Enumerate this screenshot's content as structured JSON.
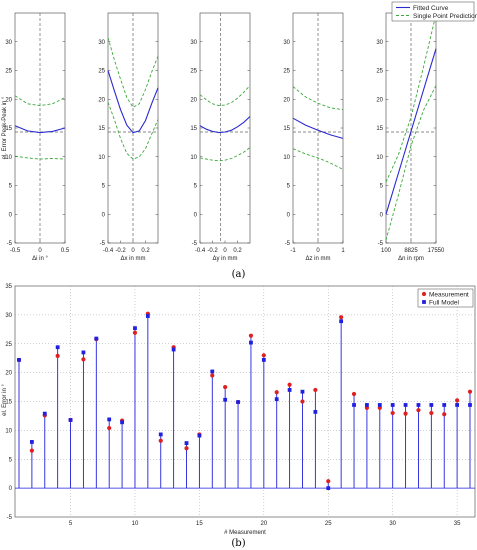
{
  "captions": {
    "a": "(a)",
    "b": "(b)"
  },
  "chart_data": [
    {
      "type": "line",
      "panel": "a",
      "ylabel": "el. Error Peak-Peak in °",
      "ylim": [
        -5,
        35
      ],
      "yticks": [
        -5,
        0,
        5,
        10,
        15,
        20,
        25,
        30
      ],
      "reference_line_y": 14.3,
      "legend": {
        "placement": "top-right",
        "entries": [
          "Fitted Curve",
          "Single Point Prediction"
        ]
      },
      "series_colors": {
        "fitted": "#2a2ad0",
        "prediction": "#3aa83a",
        "reference": "#666666"
      },
      "subplots": [
        {
          "xlabel": "Δi in °",
          "xlim": [
            -0.5,
            0.5
          ],
          "xticks": [
            -0.5,
            0,
            0.5
          ],
          "xticklabels": [
            "-0.5",
            "0",
            "0.5"
          ],
          "vline": 0,
          "x": [
            -0.5,
            -0.25,
            0,
            0.25,
            0.5
          ],
          "fitted": [
            15.4,
            14.5,
            14.2,
            14.4,
            15.0
          ],
          "upper": [
            20.6,
            19.2,
            18.9,
            19.2,
            20.3
          ],
          "lower": [
            10.1,
            9.8,
            9.6,
            9.7,
            9.6
          ]
        },
        {
          "xlabel": "Δx in mm",
          "xlim": [
            -0.4,
            0.4
          ],
          "xticks": [
            -0.4,
            -0.2,
            0,
            0.2
          ],
          "xticklabels": [
            "-0.4",
            "-0.2",
            "0",
            "0.2"
          ],
          "vline": 0,
          "x": [
            -0.4,
            -0.3,
            -0.2,
            -0.1,
            0,
            0.1,
            0.2,
            0.3,
            0.4
          ],
          "fitted": [
            25.0,
            21.5,
            18.2,
            15.5,
            14.2,
            14.5,
            16.3,
            19.3,
            22.0
          ],
          "upper": [
            30.7,
            26.9,
            23.5,
            20.3,
            18.6,
            19.2,
            21.7,
            24.8,
            27.5
          ],
          "lower": [
            19.5,
            16.5,
            13.2,
            10.6,
            9.6,
            10.0,
            11.4,
            14.0,
            16.5
          ]
        },
        {
          "xlabel": "Δy in mm",
          "xlim": [
            -0.4,
            0.4
          ],
          "xticks": [
            -0.4,
            -0.2,
            0,
            0.2
          ],
          "xticklabels": [
            "-0.4",
            "-0.2",
            "0",
            "0.2"
          ],
          "vline": -0.07,
          "x": [
            -0.4,
            -0.3,
            -0.2,
            -0.1,
            0,
            0.1,
            0.2,
            0.3,
            0.4
          ],
          "fitted": [
            15.4,
            14.8,
            14.4,
            14.2,
            14.3,
            14.6,
            15.2,
            16.0,
            17.0
          ],
          "upper": [
            20.8,
            19.9,
            19.2,
            18.9,
            19.0,
            19.4,
            20.2,
            21.2,
            22.4
          ],
          "lower": [
            9.8,
            9.6,
            9.4,
            9.3,
            9.4,
            9.7,
            10.2,
            10.8,
            11.6
          ]
        },
        {
          "xlabel": "Δz in mm",
          "xlim": [
            -1,
            1
          ],
          "xticks": [
            -1,
            0,
            1
          ],
          "xticklabels": [
            "-1",
            "0",
            "1"
          ],
          "vline": 0,
          "x": [
            -1,
            -0.5,
            0,
            0.5,
            1
          ],
          "fitted": [
            16.7,
            15.5,
            14.6,
            13.8,
            13.2
          ],
          "upper": [
            22.2,
            20.4,
            19.3,
            18.5,
            18.2
          ],
          "lower": [
            11.4,
            10.5,
            9.8,
            8.9,
            7.8
          ]
        },
        {
          "xlabel": "Δn in rpm",
          "xlim": [
            100,
            17550
          ],
          "xticks": [
            100,
            8825,
            17550
          ],
          "xticklabels": [
            "100",
            "8825",
            "17550"
          ],
          "vline": 8825,
          "x": [
            100,
            4462,
            8825,
            13187,
            17550
          ],
          "fitted": [
            0.0,
            7.2,
            14.4,
            21.6,
            28.8
          ],
          "upper": [
            5.6,
            10.4,
            16.9,
            25.6,
            34.8
          ],
          "lower": [
            -4.5,
            3.4,
            11.9,
            18.1,
            22.4
          ]
        }
      ]
    },
    {
      "type": "stem",
      "panel": "b",
      "xlabel": "# Measurement",
      "ylabel": "el. Error in °",
      "xlim": [
        1,
        36
      ],
      "ylim": [
        -5,
        35
      ],
      "xticks": [
        5,
        10,
        15,
        20,
        25,
        30,
        35
      ],
      "yticks": [
        -5,
        0,
        5,
        10,
        15,
        20,
        25,
        30,
        35
      ],
      "grid": true,
      "legend": {
        "placement": "top-right",
        "entries": [
          "Measurement",
          "Full Model"
        ]
      },
      "series_colors": {
        "measurement": "#e02020",
        "model": "#2020e0"
      },
      "x": [
        1,
        2,
        3,
        4,
        5,
        6,
        7,
        8,
        9,
        10,
        11,
        12,
        13,
        14,
        15,
        16,
        17,
        18,
        19,
        20,
        21,
        22,
        23,
        24,
        25,
        26,
        27,
        28,
        29,
        30,
        31,
        32,
        33,
        34,
        35,
        36
      ],
      "series": [
        {
          "name": "Measurement",
          "values": [
            22.2,
            6.5,
            12.6,
            22.9,
            11.8,
            22.3,
            25.8,
            10.4,
            11.7,
            26.9,
            30.2,
            8.2,
            24.4,
            6.9,
            9.3,
            19.5,
            17.5,
            14.9,
            26.4,
            23.0,
            16.6,
            17.9,
            15.0,
            17.0,
            1.2,
            29.6,
            16.3,
            13.9,
            13.9,
            13.0,
            12.9,
            13.5,
            13.0,
            12.8,
            15.2,
            16.7
          ]
        },
        {
          "name": "Full Model",
          "values": [
            22.2,
            8.0,
            12.9,
            24.4,
            11.8,
            23.5,
            25.9,
            11.9,
            11.4,
            27.7,
            29.8,
            9.3,
            24.0,
            7.8,
            9.1,
            20.2,
            15.3,
            14.9,
            25.2,
            22.2,
            15.4,
            17.0,
            16.7,
            13.2,
            0.0,
            28.9,
            14.4,
            14.4,
            14.4,
            14.4,
            14.4,
            14.4,
            14.4,
            14.4,
            14.4,
            14.4
          ]
        }
      ]
    }
  ]
}
